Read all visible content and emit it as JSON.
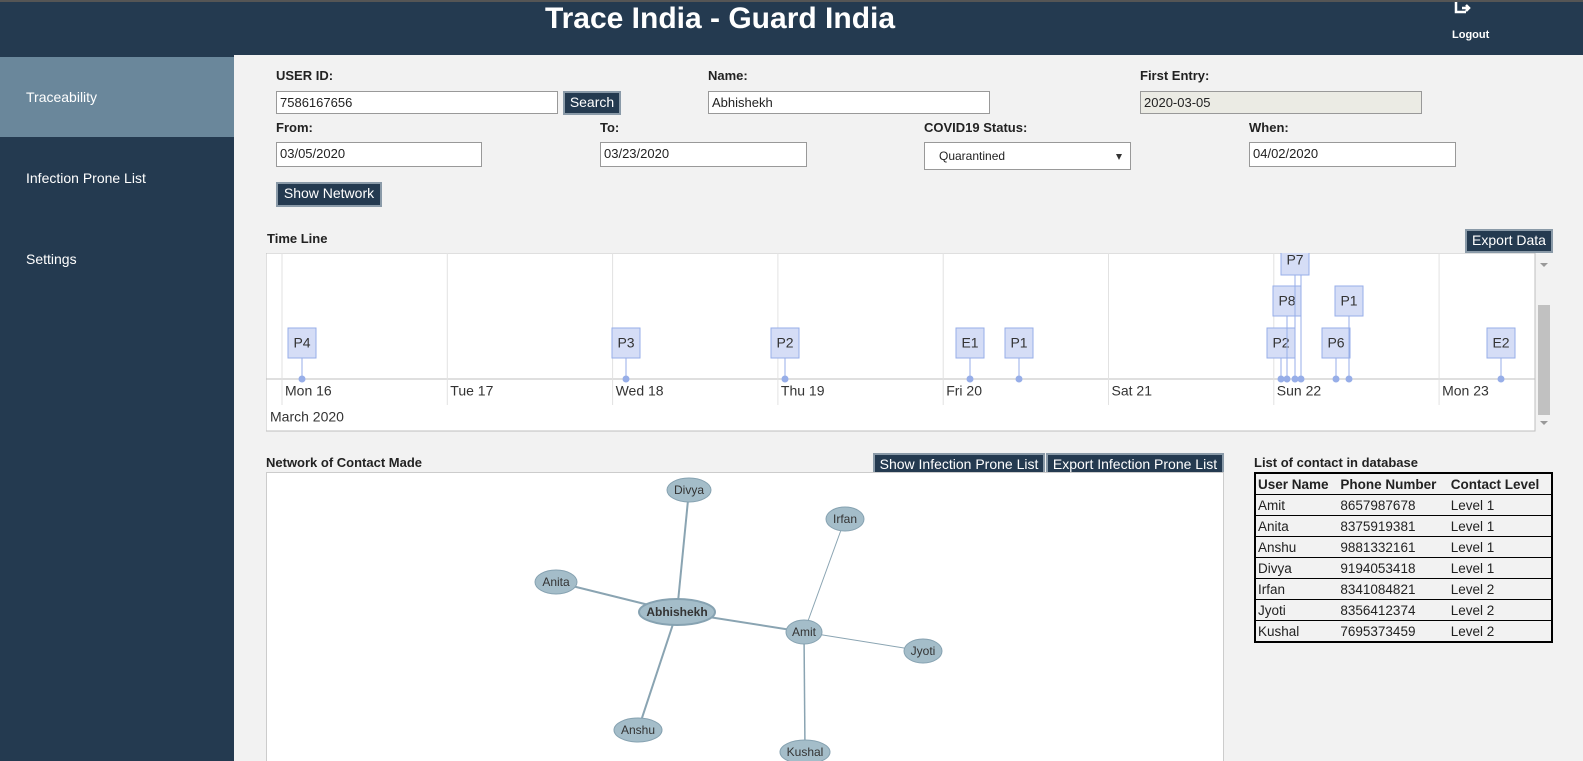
{
  "header": {
    "title": "Trace India - Guard India",
    "logout": "Logout"
  },
  "sidebar": {
    "items": [
      "Traceability",
      "Infection Prone List",
      "Settings"
    ]
  },
  "form": {
    "user_id": {
      "label": "USER ID:",
      "value": "7586167656"
    },
    "search": "Search",
    "name": {
      "label": "Name:",
      "value": "Abhishekh"
    },
    "first_entry": {
      "label": "First Entry:",
      "value": "2020-03-05"
    },
    "from": {
      "label": "From:",
      "value": "03/05/2020"
    },
    "to": {
      "label": "To:",
      "value": "03/23/2020"
    },
    "status": {
      "label": "COVID19 Status:",
      "value": "Quarantined"
    },
    "when": {
      "label": "When:",
      "value": "04/02/2020"
    },
    "show_network": "Show Network"
  },
  "timeline": {
    "title": "Time Line",
    "export": "Export Data",
    "days": [
      "Mon 16",
      "Tue 17",
      "Wed 18",
      "Thu 19",
      "Fri 20",
      "Sat 21",
      "Sun 22",
      "Mon 23"
    ],
    "month": "March 2020",
    "events": [
      "P4",
      "P3",
      "P2",
      "E1",
      "P1",
      "P2",
      "P6",
      "E2",
      "P8",
      "P1",
      "P7"
    ]
  },
  "network": {
    "title": "Network of Contact Made",
    "show_button": "Show Infection Prone List",
    "export_button": "Export Infection Prone List",
    "nodes": [
      "Divya",
      "Irfan",
      "Anita",
      "Abhishekh",
      "Amit",
      "Jyoti",
      "Anshu",
      "Kushal"
    ]
  },
  "contacts": {
    "title": "List of contact in database",
    "header": [
      "User Name",
      "Phone Number",
      "Contact Level"
    ],
    "rows": [
      [
        "Amit",
        "8657987678",
        "Level 1"
      ],
      [
        "Anita",
        "8375919381",
        "Level 1"
      ],
      [
        "Anshu",
        "9881332161",
        "Level 1"
      ],
      [
        "Divya",
        "9194053418",
        "Level 1"
      ],
      [
        "Irfan",
        "8341084821",
        "Level 2"
      ],
      [
        "Jyoti",
        "8356412374",
        "Level 2"
      ],
      [
        "Kushal",
        "7695373459",
        "Level 2"
      ]
    ]
  }
}
